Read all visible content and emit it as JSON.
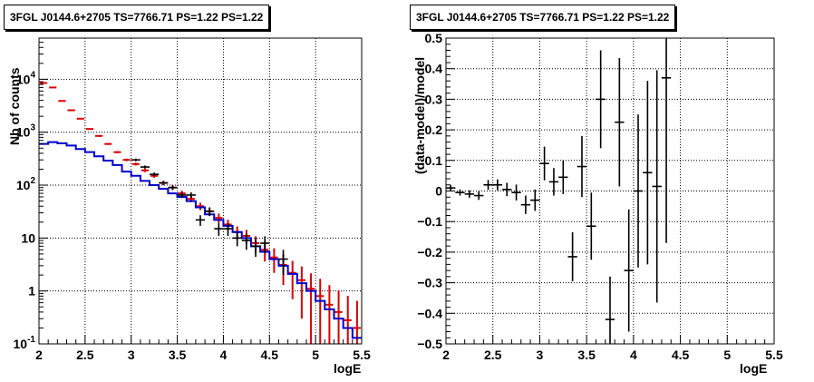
{
  "chart_data": [
    {
      "type": "line",
      "title": "3FGL J0144.6+2705 TS=7766.71 PS=1.22 PS=1.22",
      "xlabel": "logE",
      "ylabel": "Nb of counts",
      "xlim": [
        2,
        5.5
      ],
      "ylim": [
        0.1,
        60000
      ],
      "yscale": "log",
      "grid": true,
      "x_ticks": [
        "2",
        "2.5",
        "3",
        "3.5",
        "4",
        "4.5",
        "5",
        "5.5"
      ],
      "y_ticks": [
        "10^-1",
        "1",
        "10",
        "10^2",
        "10^3",
        "10^4"
      ],
      "colors": {
        "data": "#000000",
        "model_total": "#dd0000",
        "model_source": "#0000cc"
      },
      "series": [
        {
          "role": "data",
          "x": [
            3.05,
            3.15,
            3.25,
            3.35,
            3.45,
            3.55,
            3.65,
            3.75,
            3.85,
            3.95,
            4.05,
            4.15,
            4.25,
            4.35,
            4.45,
            4.65
          ],
          "y": [
            300,
            220,
            160,
            110,
            90,
            65,
            65,
            22,
            32,
            15,
            15,
            10,
            9,
            7,
            8,
            4
          ],
          "yerr": [
            17,
            15,
            13,
            10,
            9,
            8,
            8,
            5,
            6,
            4,
            4,
            3,
            3,
            2.6,
            2.8,
            2
          ]
        },
        {
          "role": "model_total",
          "bin_edges": [
            2,
            2.1,
            2.2,
            2.3,
            2.4,
            2.5,
            2.6,
            2.7,
            2.8,
            2.9,
            3,
            3.1,
            3.2,
            3.3,
            3.4,
            3.5,
            3.6,
            3.7,
            3.8,
            3.9,
            4,
            4.1,
            4.2,
            4.3,
            4.4,
            4.5,
            4.6,
            4.7,
            4.8,
            4.9,
            5,
            5.1,
            5.2,
            5.3,
            5.4,
            5.5
          ],
          "values": [
            8500,
            7000,
            3900,
            2600,
            1800,
            1150,
            850,
            600,
            420,
            300,
            250,
            190,
            150,
            110,
            90,
            70,
            55,
            40,
            32,
            24,
            18,
            13,
            11,
            8,
            6,
            4.3,
            3.1,
            2.2,
            1.6,
            1.1,
            0.8,
            0.55,
            0.4,
            0.28,
            0.2
          ],
          "errors": [
            90,
            80,
            60,
            50,
            40,
            33,
            29,
            24,
            20,
            17,
            16,
            14,
            12,
            10.5,
            9.5,
            8.4,
            7.4,
            6.3,
            5.7,
            4.9,
            4.2,
            3.6,
            3.3,
            2.8,
            2.4,
            2.1,
            1.8,
            1.5,
            1.3,
            1.05,
            0.9,
            0.74,
            0.63,
            0.53,
            0.45
          ]
        },
        {
          "role": "model_source",
          "bin_edges": [
            2,
            2.1,
            2.2,
            2.3,
            2.4,
            2.5,
            2.6,
            2.7,
            2.8,
            2.9,
            3,
            3.1,
            3.2,
            3.3,
            3.4,
            3.5,
            3.6,
            3.7,
            3.8,
            3.9,
            4,
            4.1,
            4.2,
            4.3,
            4.4,
            4.5,
            4.6,
            4.7,
            4.8,
            4.9,
            5,
            5.1,
            5.2,
            5.3,
            5.4,
            5.5
          ],
          "values": [
            600,
            650,
            620,
            560,
            480,
            420,
            350,
            290,
            240,
            180,
            150,
            120,
            100,
            85,
            70,
            60,
            50,
            38,
            28,
            22,
            17,
            13,
            10,
            7,
            5.5,
            4,
            3,
            2.1,
            1.4,
            1.0,
            0.65,
            0.45,
            0.3,
            0.2,
            0.13
          ]
        }
      ]
    },
    {
      "type": "scatter",
      "title": "3FGL J0144.6+2705 TS=7766.71 PS=1.22 PS=1.22",
      "xlabel": "logE",
      "ylabel": "(data-model)/model",
      "xlim": [
        2,
        5.5
      ],
      "ylim": [
        -0.5,
        0.5
      ],
      "grid": true,
      "x_ticks": [
        "2",
        "2.5",
        "3",
        "3.5",
        "4",
        "4.5",
        "5",
        "5.5"
      ],
      "y_ticks": [
        "-0.5",
        "-0.4",
        "-0.3",
        "-0.2",
        "-0.1",
        "0",
        "0.1",
        "0.2",
        "0.3",
        "0.4",
        "0.5"
      ],
      "x": [
        2.05,
        2.15,
        2.25,
        2.35,
        2.45,
        2.55,
        2.65,
        2.75,
        2.85,
        2.95,
        3.05,
        3.15,
        3.25,
        3.35,
        3.45,
        3.55,
        3.65,
        3.75,
        3.85,
        3.95,
        4.05,
        4.15,
        4.25,
        4.35
      ],
      "y": [
        0.01,
        -0.005,
        -0.01,
        -0.015,
        0.02,
        0.02,
        0.005,
        -0.005,
        -0.045,
        -0.03,
        0.09,
        0.03,
        0.045,
        -0.215,
        0.08,
        -0.115,
        0.3,
        -0.42,
        0.225,
        -0.26,
        0.0,
        0.06,
        0.015,
        0.37
      ],
      "yerr": [
        0.01,
        0.01,
        0.012,
        0.014,
        0.016,
        0.018,
        0.022,
        0.026,
        0.03,
        0.035,
        0.055,
        0.045,
        0.055,
        0.08,
        0.1,
        0.11,
        0.16,
        0.14,
        0.21,
        0.2,
        0.25,
        0.3,
        0.38,
        0.54
      ]
    }
  ]
}
